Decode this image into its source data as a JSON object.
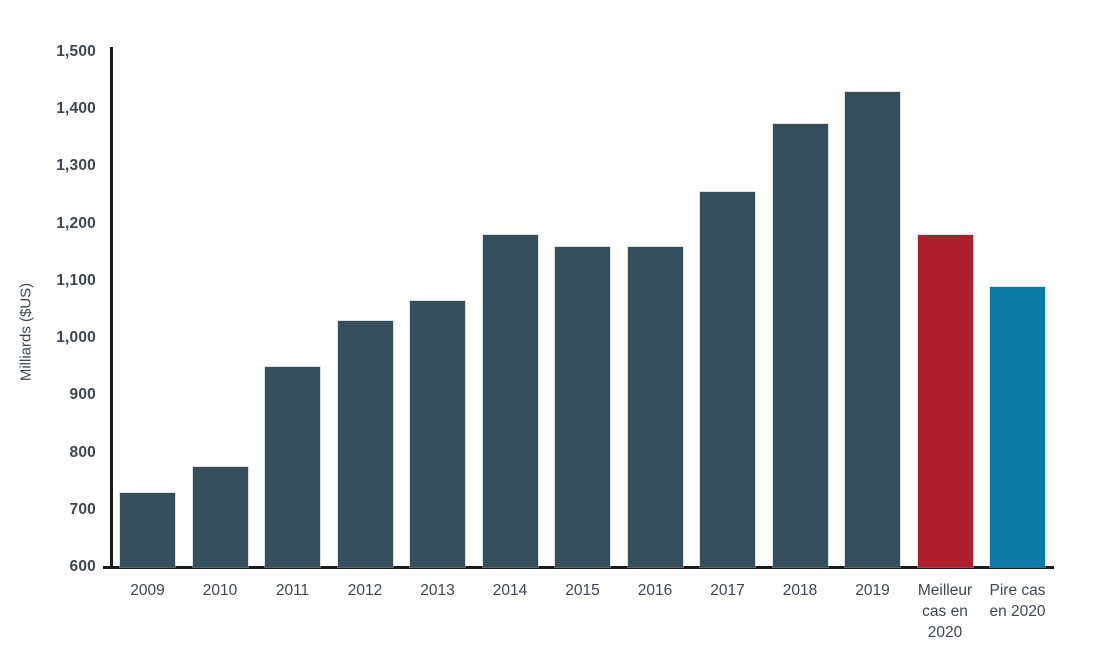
{
  "chart": {
    "y_axis_title": "Milliards ($US)"
  },
  "chart_data": {
    "type": "bar",
    "title": "",
    "xlabel": "",
    "ylabel": "Milliards ($US)",
    "ylim": [
      600,
      1500
    ],
    "ytick_step": 100,
    "ytick_labels": [
      "600",
      "700",
      "800",
      "900",
      "1,000",
      "1,100",
      "1,200",
      "1,300",
      "1,400",
      "1,500"
    ],
    "grid": false,
    "legend_position": "none",
    "categories": [
      "2009",
      "2010",
      "2011",
      "2012",
      "2013",
      "2014",
      "2015",
      "2016",
      "2017",
      "2018",
      "2019",
      "Meilleur cas en 2020",
      "Pire cas en 2020"
    ],
    "categories_display_lines": [
      [
        "2009"
      ],
      [
        "2010"
      ],
      [
        "2011"
      ],
      [
        "2012"
      ],
      [
        "2013"
      ],
      [
        "2014"
      ],
      [
        "2015"
      ],
      [
        "2016"
      ],
      [
        "2017"
      ],
      [
        "2018"
      ],
      [
        "2019"
      ],
      [
        "Meilleur",
        "cas en",
        "2020"
      ],
      [
        "Pire cas",
        "en 2020"
      ]
    ],
    "values": [
      730,
      775,
      950,
      1030,
      1065,
      1180,
      1160,
      1160,
      1255,
      1375,
      1430,
      1180,
      1090
    ],
    "bar_colors": [
      "#344f5b",
      "#344f5b",
      "#344f5b",
      "#344f5b",
      "#344f5b",
      "#344f5b",
      "#344f5b",
      "#344f5b",
      "#344f5b",
      "#344f5b",
      "#344f5b",
      "#ad1f2d",
      "#0b7aa6"
    ],
    "colors": {
      "default_bar": "#344f5b",
      "best_case_2020_bar": "#ad1f2d",
      "worst_case_2020_bar": "#0b7aa6",
      "axis_line": "#1a1d1f",
      "tick_text": "#3d4752"
    }
  }
}
